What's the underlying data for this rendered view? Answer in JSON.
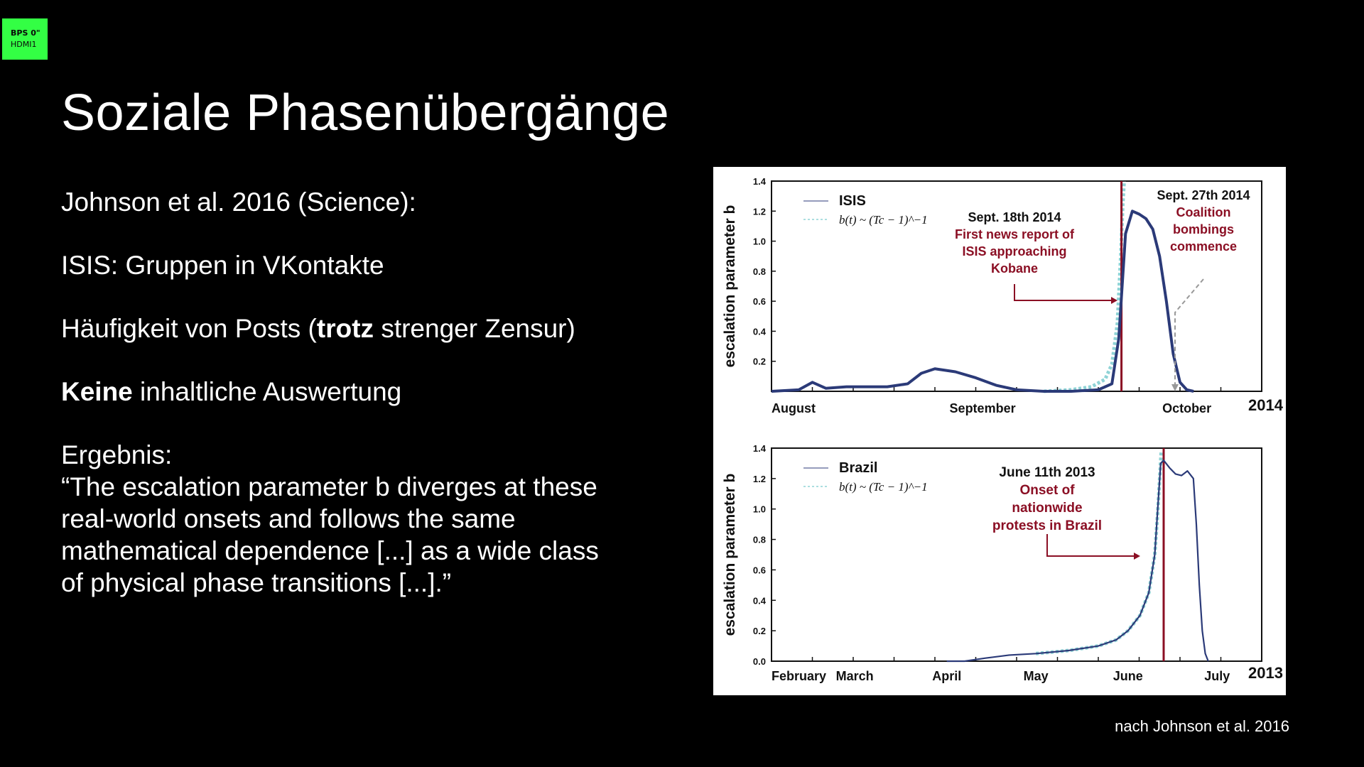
{
  "osd": {
    "line1": "BPS 0\"",
    "line2": "HDMI1"
  },
  "slide": {
    "title": "Soziale Phasenübergänge",
    "line1": "Johnson et al. 2016 (Science):",
    "line2": "ISIS: Gruppen in VKontakte",
    "line3_a": "Häufigkeit von Posts (",
    "line3_bold": "trotz",
    "line3_b": " strenger Zensur)",
    "line4_bold": "Keine",
    "line4_b": " inhaltliche Auswertung",
    "result_heading": "Ergebnis:",
    "quote": [
      "“The escalation parameter b diverges at these",
      "real-world onsets and follows the same",
      "mathematical dependence [...] as a wide class",
      "of physical phase transitions [...].”"
    ],
    "source": "nach Johnson et al. 2016"
  },
  "colors": {
    "background": "#000000",
    "osd": "#33ff44",
    "series": "#2b3a78",
    "fit": "#8fd3d6",
    "onset": "#8b0f24",
    "annotation": "#8b0f24"
  },
  "chart_data": [
    {
      "type": "line",
      "ylabel": "escalation parameter b",
      "year": "2014",
      "yticks": [
        "1.4",
        "1.2",
        "1.0",
        "0.8",
        "0.6",
        "0.4",
        "0.2"
      ],
      "ylim": [
        0,
        1.4
      ],
      "x_ticks": [
        {
          "label": "August",
          "x": 0
        },
        {
          "label": "September",
          "x": 31
        },
        {
          "label": "October",
          "x": 61
        }
      ],
      "xlim": [
        0,
        72
      ],
      "series": [
        {
          "name": "ISIS",
          "x": [
            0,
            4,
            6,
            8,
            11,
            14,
            17,
            20,
            22,
            24,
            27,
            30,
            33,
            36,
            40,
            44,
            48,
            50,
            51,
            52,
            53,
            54,
            55,
            56,
            57,
            58,
            59,
            60,
            61,
            62
          ],
          "values": [
            0.0,
            0.01,
            0.06,
            0.02,
            0.03,
            0.03,
            0.03,
            0.05,
            0.12,
            0.15,
            0.13,
            0.09,
            0.04,
            0.01,
            0.0,
            0.0,
            0.01,
            0.05,
            0.35,
            1.05,
            1.2,
            1.18,
            1.15,
            1.08,
            0.9,
            0.6,
            0.25,
            0.06,
            0.01,
            0.0
          ]
        }
      ],
      "fit": {
        "label": "b(t) ~ (Tc − 1)^−1",
        "x": [
          40,
          44,
          47,
          49,
          50,
          50.8,
          51.3,
          51.6,
          51.8
        ],
        "values": [
          0.0,
          0.01,
          0.03,
          0.08,
          0.18,
          0.45,
          0.9,
          1.25,
          1.4
        ]
      },
      "onset_x": 51.4,
      "annotations": [
        {
          "title": "Sept. 18th 2014",
          "text": [
            "First news report of",
            "ISIS approaching",
            "Kobane"
          ]
        },
        {
          "title": "Sept. 27th 2014",
          "text": [
            "Coalition",
            "bombings",
            "commence"
          ]
        }
      ]
    },
    {
      "type": "line",
      "ylabel": "escalation parameter b",
      "year": "2013",
      "yticks": [
        "1.4",
        "1.2",
        "1.0",
        "0.8",
        "0.6",
        "0.4",
        "0.2",
        "0.0"
      ],
      "ylim": [
        0,
        1.4
      ],
      "x_ticks": [
        {
          "label": "February",
          "x": 0
        },
        {
          "label": "March",
          "x": 28
        },
        {
          "label": "April",
          "x": 59
        },
        {
          "label": "May",
          "x": 89
        },
        {
          "label": "June",
          "x": 120
        },
        {
          "label": "July",
          "x": 150
        }
      ],
      "xlim": [
        0,
        165
      ],
      "series": [
        {
          "name": "Brazil",
          "x": [
            59,
            65,
            72,
            80,
            89,
            100,
            110,
            116,
            120,
            124,
            127,
            129,
            130,
            131,
            132,
            134,
            136,
            138,
            140,
            142,
            143,
            144,
            145,
            146,
            147
          ],
          "values": [
            0.0,
            0.0,
            0.02,
            0.04,
            0.05,
            0.07,
            0.1,
            0.14,
            0.2,
            0.3,
            0.45,
            0.7,
            1.0,
            1.3,
            1.32,
            1.27,
            1.23,
            1.22,
            1.25,
            1.2,
            0.9,
            0.5,
            0.2,
            0.05,
            0.0
          ]
        }
      ],
      "fit": {
        "label": "b(t) ~ (Tc − 1)^−1",
        "x": [
          89,
          100,
          110,
          116,
          120,
          124,
          127,
          129,
          130,
          130.8,
          131.2
        ],
        "values": [
          0.05,
          0.07,
          0.1,
          0.14,
          0.2,
          0.3,
          0.45,
          0.7,
          0.98,
          1.25,
          1.38
        ]
      },
      "onset_x": 132,
      "annotations": [
        {
          "title": "June 11th 2013",
          "text": [
            "Onset of",
            "nationwide",
            "protests in Brazil"
          ]
        }
      ]
    }
  ]
}
